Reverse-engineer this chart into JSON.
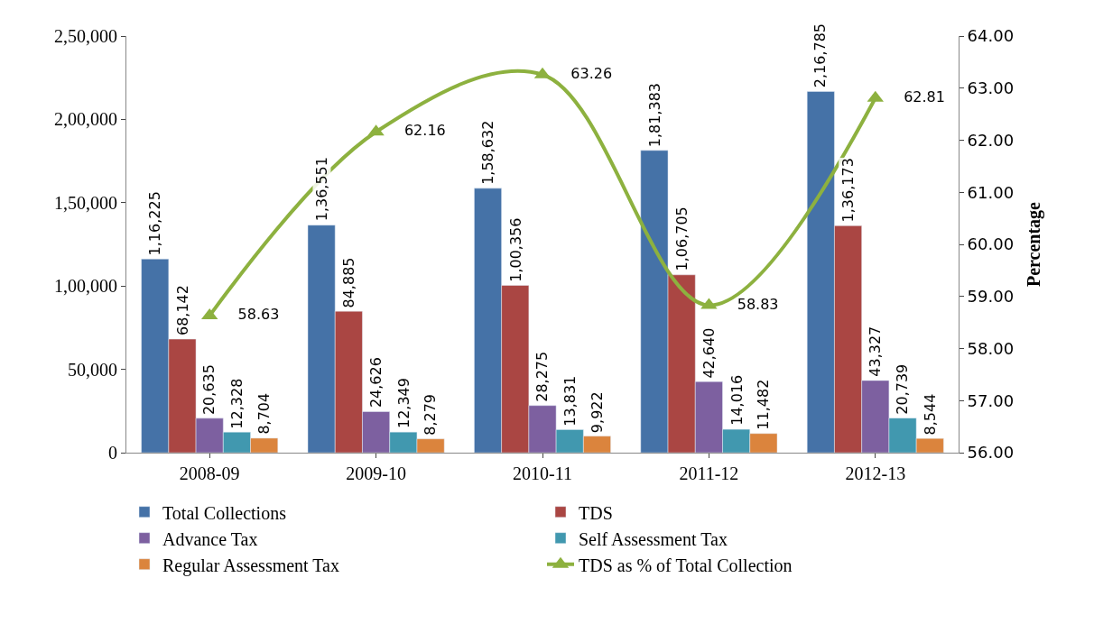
{
  "chart_data": {
    "type": "bar",
    "categories": [
      "2008-09",
      "2009-10",
      "2010-11",
      "2011-12",
      "2012-13"
    ],
    "series": [
      {
        "name": "Total Collections",
        "color": "#4572a7",
        "values": [
          116225,
          136551,
          158632,
          181383,
          216785
        ],
        "value_labels": [
          "1,16,225",
          "1,36,551",
          "1,58,632",
          "1,81,383",
          "2,16,785"
        ]
      },
      {
        "name": "TDS",
        "color": "#aa4643",
        "values": [
          68142,
          84885,
          100356,
          106705,
          136173
        ],
        "value_labels": [
          "68,142",
          "84,885",
          "1,00,356",
          "1,06,705",
          "1,36,173"
        ]
      },
      {
        "name": "Advance Tax",
        "color": "#7d60a0",
        "values": [
          20635,
          24626,
          28275,
          42640,
          43327
        ],
        "value_labels": [
          "20,635",
          "24,626",
          "28,275",
          "42,640",
          "43,327"
        ]
      },
      {
        "name": "Self Assessment Tax",
        "color": "#4198af",
        "values": [
          12328,
          12349,
          13831,
          14016,
          20739
        ],
        "value_labels": [
          "12,328",
          "12,349",
          "13,831",
          "14,016",
          "20,739"
        ]
      },
      {
        "name": "Regular Assessment Tax",
        "color": "#db843d",
        "values": [
          8704,
          8279,
          9922,
          11482,
          8544
        ],
        "value_labels": [
          "8,704",
          "8,279",
          "9,922",
          "11,482",
          "8,544"
        ]
      },
      {
        "name": "TDS as % of Total Collection",
        "type": "line",
        "axis": "y2",
        "color": "#8db13f",
        "marker": "triangle",
        "line_style": "solid",
        "values": [
          58.63,
          62.16,
          63.26,
          58.83,
          62.81
        ],
        "value_labels": [
          "58.63",
          "62.16",
          "63.26",
          "58.83",
          "62.81"
        ]
      }
    ],
    "ylim": [
      0,
      250000
    ],
    "yticks": [
      0,
      {
        "value": 50000,
        "label": "50,000"
      },
      {
        "value": 100000,
        "label": "1,00,000"
      },
      {
        "value": 150000,
        "label": "1,50,000"
      },
      {
        "value": 200000,
        "label": "2,00,000"
      },
      {
        "value": 250000,
        "label": "2,50,000"
      }
    ],
    "y2lim": [
      56,
      64
    ],
    "y2ticks": [
      {
        "value": 56,
        "label": "56.00"
      },
      {
        "value": 57,
        "label": "57.00"
      },
      {
        "value": 58,
        "label": "58.00"
      },
      {
        "value": 59,
        "label": "59.00"
      },
      {
        "value": 60,
        "label": "60.00"
      },
      {
        "value": 61,
        "label": "61.00"
      },
      {
        "value": 62,
        "label": "62.00"
      },
      {
        "value": 63,
        "label": "63.00"
      },
      {
        "value": 64,
        "label": "64.00"
      }
    ],
    "y2label": "Percentage",
    "legend": "bottom"
  }
}
